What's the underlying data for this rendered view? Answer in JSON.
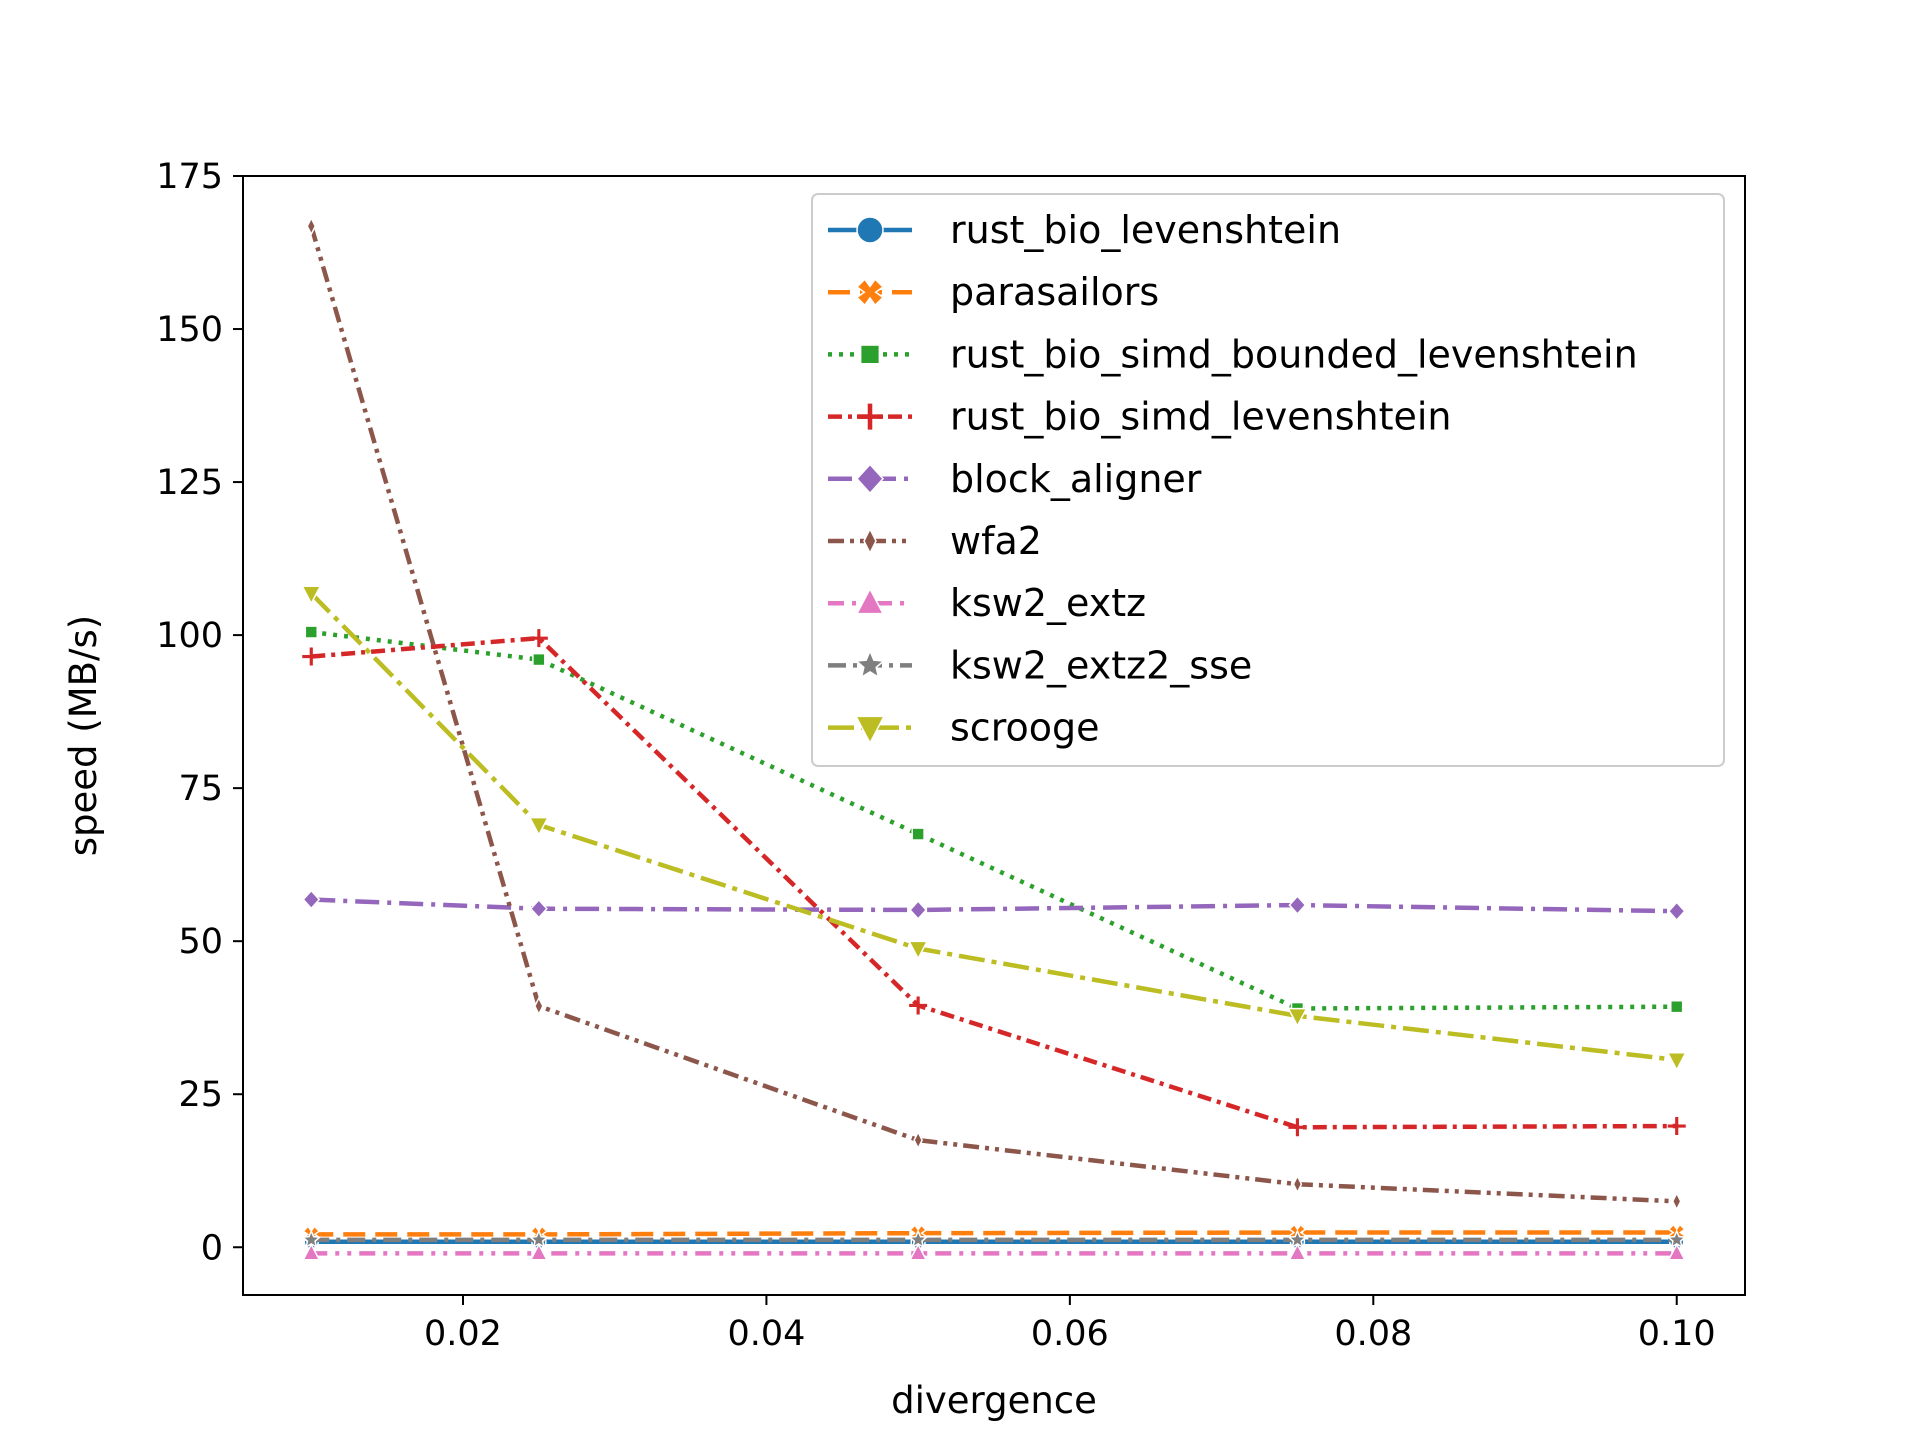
{
  "chart_data": {
    "type": "line",
    "title": "",
    "xlabel": "divergence",
    "ylabel": "speed (MB/s)",
    "xlim": [
      0.0055,
      0.1045
    ],
    "ylim": [
      -7.8,
      175
    ],
    "xticks": [
      0.02,
      0.04,
      0.06,
      0.08,
      0.1
    ],
    "xtick_labels": [
      "0.02",
      "0.04",
      "0.06",
      "0.08",
      "0.10"
    ],
    "yticks": [
      0,
      25,
      50,
      75,
      100,
      125,
      150,
      175
    ],
    "ytick_labels": [
      "0",
      "25",
      "50",
      "75",
      "100",
      "125",
      "150",
      "175"
    ],
    "grid": false,
    "legend_position": "top-right",
    "x": [
      0.01,
      0.025,
      0.05,
      0.075,
      0.1
    ],
    "series": [
      {
        "name": "rust_bio_levenshtein",
        "color": "#1f77b4",
        "marker": "circle",
        "dash": "solid",
        "values": [
          0.9,
          0.9,
          0.9,
          0.9,
          0.9
        ]
      },
      {
        "name": "parasailors",
        "color": "#ff7f0e",
        "marker": "x-filled",
        "dash": "dashed",
        "values": [
          2.1,
          2.1,
          2.3,
          2.4,
          2.4
        ]
      },
      {
        "name": "rust_bio_simd_bounded_levenshtein",
        "color": "#2ca02c",
        "marker": "square",
        "dash": "dotted",
        "values": [
          100.5,
          96.0,
          67.5,
          39.0,
          39.3
        ]
      },
      {
        "name": "rust_bio_simd_levenshtein",
        "color": "#d62728",
        "marker": "plus",
        "dash": "dashdot-dense",
        "values": [
          96.5,
          99.5,
          39.5,
          19.6,
          19.8
        ]
      },
      {
        "name": "block_aligner",
        "color": "#9467bd",
        "marker": "diamond",
        "dash": "dashdot",
        "values": [
          56.8,
          55.3,
          55.1,
          55.9,
          54.9
        ]
      },
      {
        "name": "wfa2",
        "color": "#8c564b",
        "marker": "thin-diamond",
        "dash": "dashdotdot",
        "values": [
          166.8,
          39.4,
          17.5,
          10.3,
          7.5
        ]
      },
      {
        "name": "ksw2_extz",
        "color": "#e377c2",
        "marker": "triangle-up",
        "dash": "dashdotdot-loose",
        "values": [
          -1.0,
          -1.0,
          -1.0,
          -1.0,
          -1.0
        ]
      },
      {
        "name": "ksw2_extz2_sse",
        "color": "#7f7f7f",
        "marker": "star",
        "dash": "dash-dot",
        "values": [
          1.2,
          1.2,
          1.2,
          1.2,
          1.2
        ]
      },
      {
        "name": "scrooge",
        "color": "#bcbd22",
        "marker": "triangle-down",
        "dash": "longdashdot",
        "values": [
          106.8,
          69.0,
          48.8,
          37.8,
          30.6
        ]
      }
    ]
  }
}
